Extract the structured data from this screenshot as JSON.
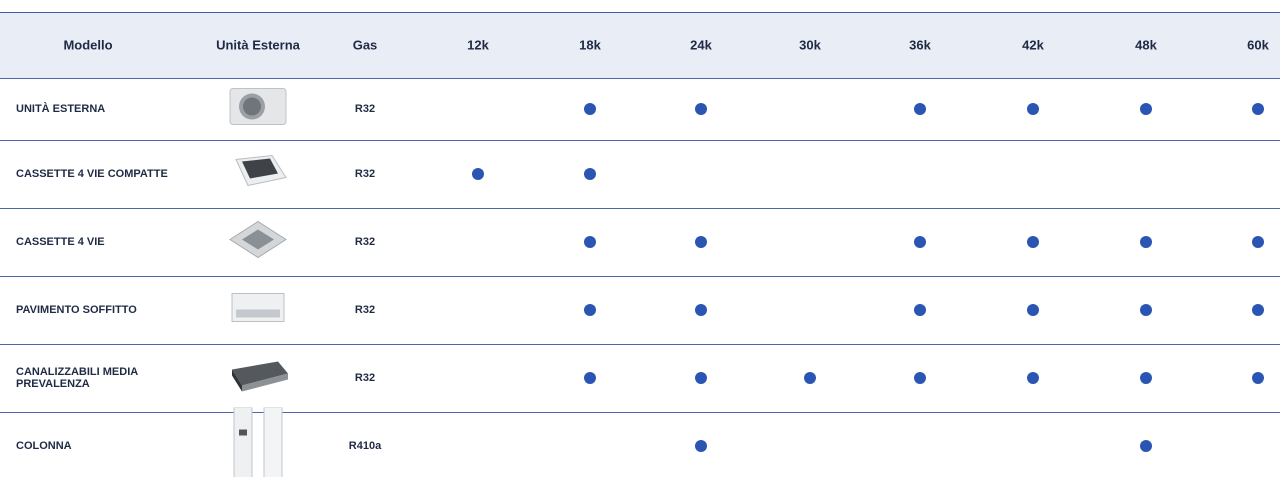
{
  "table": {
    "columns": [
      "Modello",
      "Unità Esterna",
      "Gas",
      "12k",
      "18k",
      "24k",
      "30k",
      "36k",
      "42k",
      "48k",
      "60k"
    ],
    "rows": [
      {
        "model": "UNITÀ ESTERNA",
        "gas": "R32",
        "availability": [
          false,
          true,
          true,
          false,
          true,
          true,
          true,
          true
        ]
      },
      {
        "model": "CASSETTE 4 VIE COMPATTE",
        "gas": "R32",
        "availability": [
          true,
          true,
          false,
          false,
          false,
          false,
          false,
          false
        ]
      },
      {
        "model": "CASSETTE 4 VIE",
        "gas": "R32",
        "availability": [
          false,
          true,
          true,
          false,
          true,
          true,
          true,
          true
        ]
      },
      {
        "model": "PAVIMENTO SOFFITTO",
        "gas": "R32",
        "availability": [
          false,
          true,
          true,
          false,
          true,
          true,
          true,
          true
        ]
      },
      {
        "model": "CANALIZZABILI MEDIA PREVALENZA",
        "gas": "R32",
        "availability": [
          false,
          true,
          true,
          true,
          true,
          true,
          true,
          true
        ]
      },
      {
        "model": "COLONNA",
        "gas": "R410a",
        "availability": [
          false,
          false,
          true,
          false,
          false,
          false,
          true,
          false
        ]
      }
    ]
  }
}
